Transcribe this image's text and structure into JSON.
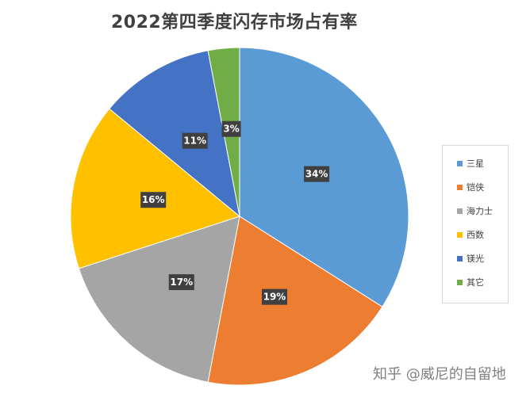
{
  "chart_data": {
    "type": "pie",
    "title": "2022第四季度闪存市场占有率",
    "categories": [
      "三星",
      "铠侠",
      "海力士",
      "西数",
      "镁光",
      "其它"
    ],
    "values": [
      34,
      19,
      17,
      16,
      11,
      3
    ],
    "data_labels": [
      "34%",
      "19%",
      "17%",
      "16%",
      "11%",
      "3%"
    ],
    "colors": [
      "#5b9bd5",
      "#ed7d31",
      "#a5a5a5",
      "#ffc000",
      "#4472c4",
      "#70ad47"
    ],
    "start_angle_deg": 0,
    "direction": "clockwise",
    "legend_position": "right"
  },
  "watermark": "知乎 @威尼的自留地"
}
